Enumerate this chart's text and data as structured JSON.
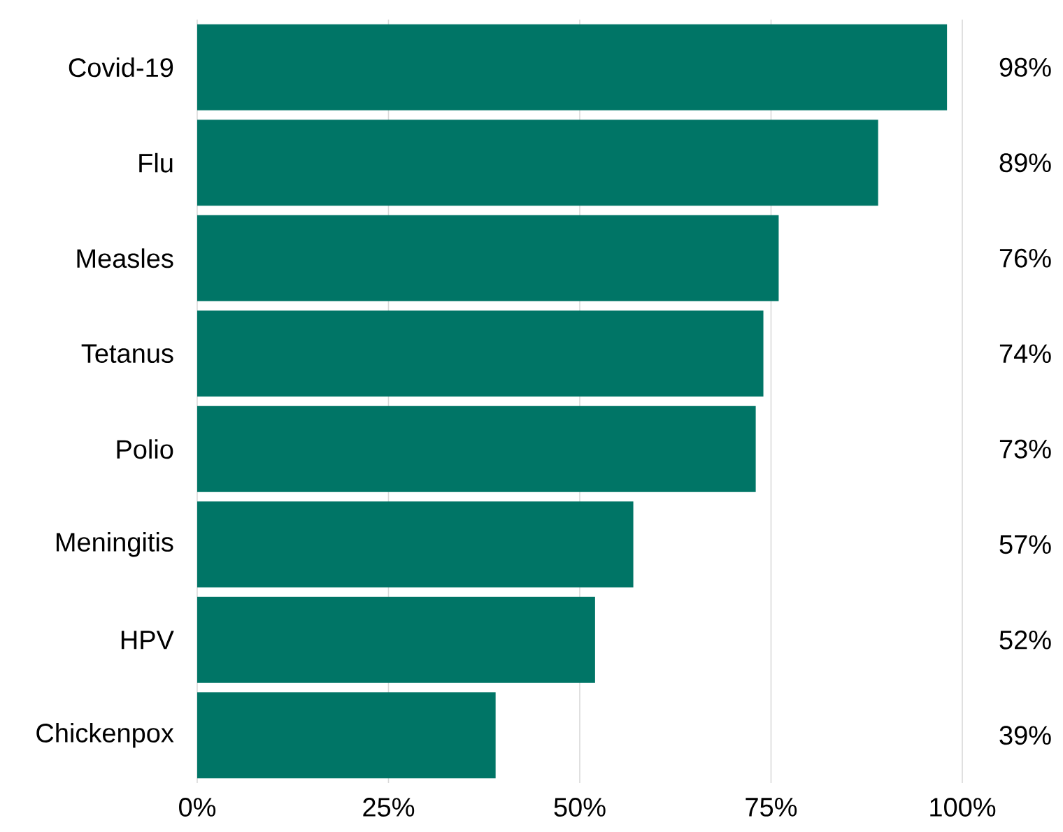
{
  "chart_data": {
    "type": "bar",
    "orientation": "horizontal",
    "categories": [
      "Covid-19",
      "Flu",
      "Measles",
      "Tetanus",
      "Polio",
      "Meningitis",
      "HPV",
      "Chickenpox"
    ],
    "values": [
      98,
      89,
      76,
      74,
      73,
      57,
      52,
      39
    ],
    "value_labels": [
      "98%",
      "89%",
      "76%",
      "74%",
      "73%",
      "57%",
      "52%",
      "39%"
    ],
    "color": "#007566",
    "xlim": [
      0,
      100
    ],
    "xticks": [
      {
        "value": 0,
        "label": "0%"
      },
      {
        "value": 25,
        "label": "25%"
      },
      {
        "value": 50,
        "label": "50%"
      },
      {
        "value": 75,
        "label": "75%"
      },
      {
        "value": 100,
        "label": "100%"
      }
    ],
    "grid": "x"
  }
}
